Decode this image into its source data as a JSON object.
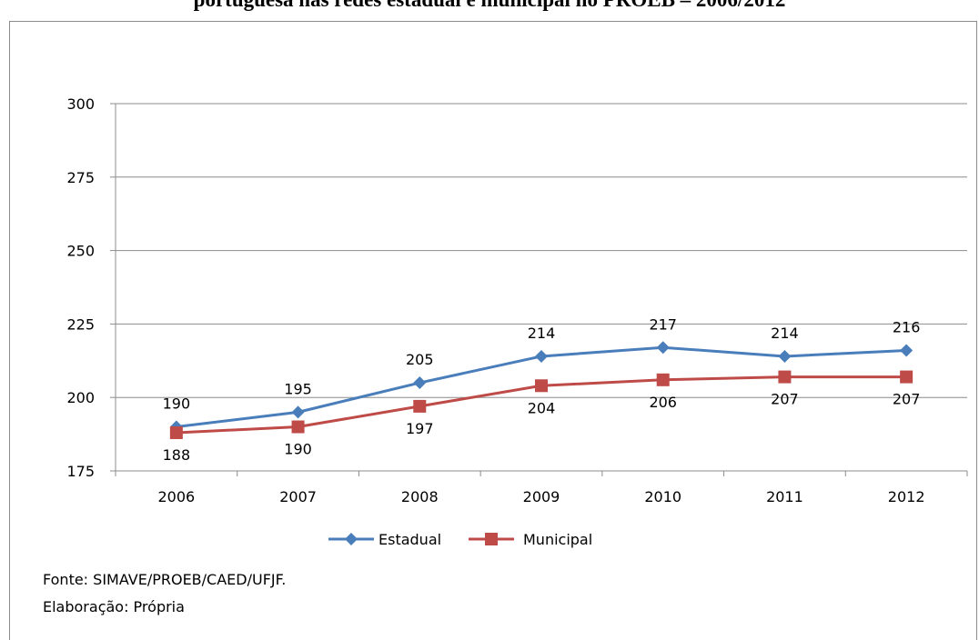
{
  "heading": "portuguesa nas redes estadual e municipal no PROEB – 2006/2012",
  "chart_data": {
    "type": "line",
    "categories": [
      "2006",
      "2007",
      "2008",
      "2009",
      "2010",
      "2011",
      "2012"
    ],
    "ylim": [
      175,
      300
    ],
    "yticks": [
      "175",
      "200",
      "225",
      "250",
      "275",
      "300"
    ],
    "grid": true,
    "legend": "bottom",
    "series": [
      {
        "name": "Estadual",
        "color": "#4a7ebb",
        "marker": "diamond",
        "values": [
          190,
          195,
          205,
          214,
          217,
          214,
          216
        ],
        "labels": [
          "190",
          "195",
          "205",
          "214",
          "217",
          "214",
          "216"
        ]
      },
      {
        "name": "Municipal",
        "color": "#be4b48",
        "marker": "square",
        "values": [
          188,
          190,
          197,
          204,
          206,
          207,
          207
        ],
        "labels": [
          "188",
          "190",
          "197",
          "204",
          "206",
          "207",
          "207"
        ]
      }
    ]
  },
  "source": {
    "line1": "Fonte: SIMAVE/PROEB/CAED/UFJF.",
    "line2": "Elaboração: Própria"
  }
}
